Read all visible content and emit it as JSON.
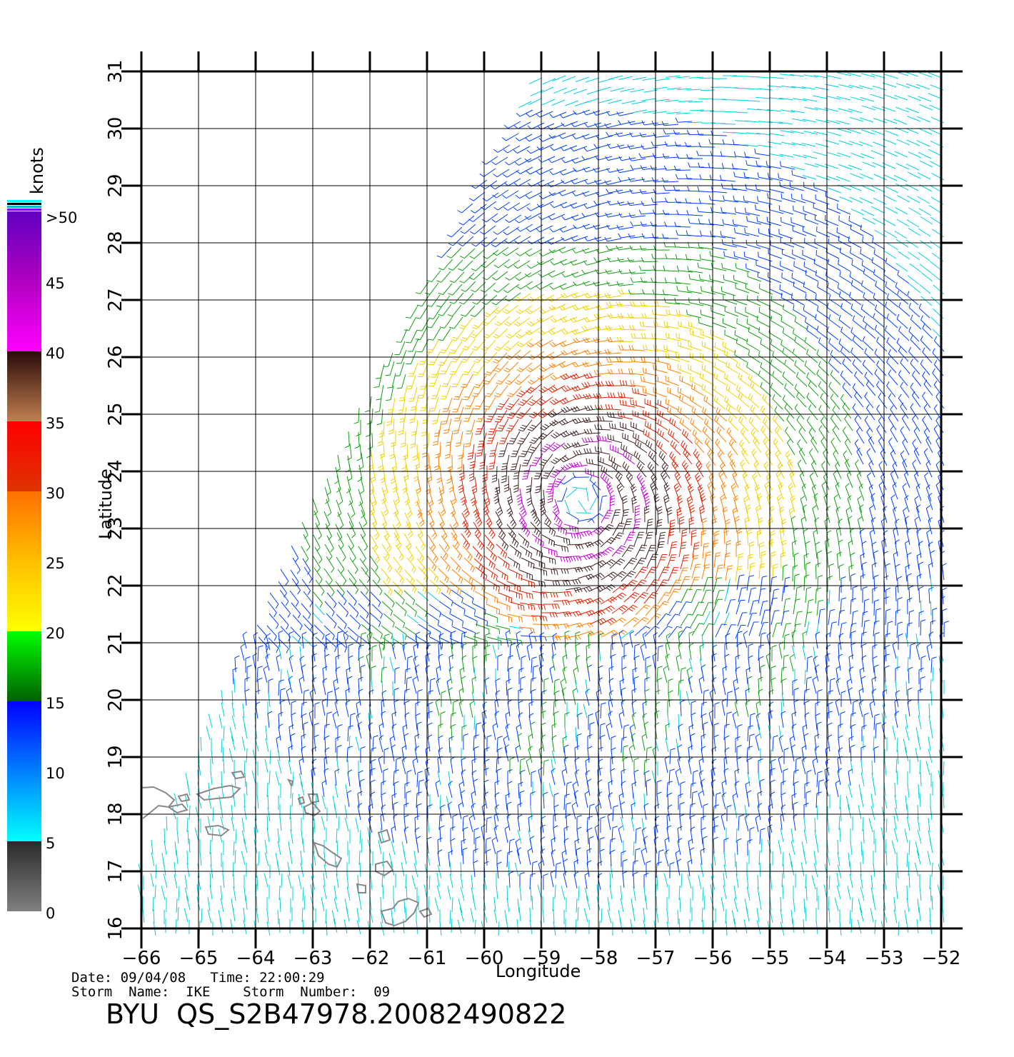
{
  "map": {
    "xlabel": "Longitude",
    "ylabel": "Latitude",
    "lon_range": [
      -66,
      -52
    ],
    "lat_range": [
      16,
      31
    ],
    "lon_ticks": [
      -66,
      -65,
      -64,
      -63,
      -62,
      -61,
      -60,
      -59,
      -58,
      -57,
      -56,
      -55,
      -54,
      -53,
      -52
    ],
    "lat_ticks": [
      16,
      17,
      18,
      19,
      20,
      21,
      22,
      23,
      24,
      25,
      26,
      27,
      28,
      29,
      30,
      31
    ],
    "grid": true,
    "storm_center": {
      "lon": -58.3,
      "lat": 23.5
    },
    "colors": {
      "gridline": "#000000",
      "coastline": "#888888"
    }
  },
  "colorbar": {
    "unit": "knots",
    "top_label": ">50",
    "labels": [
      "0",
      "5",
      "10",
      "15",
      "20",
      "25",
      "30",
      "35",
      "40",
      "45"
    ],
    "colors": {
      "0": "#808080",
      "5": "#2a2a2a",
      "5b": "#00ffff",
      "10": "#0080ff",
      "15": "#0000ff",
      "15b": "#008000",
      "20": "#00ff00",
      "20b": "#ffff00",
      "25": "#ffbf00",
      "30": "#ff6000",
      "30b": "#dd3300",
      "35": "#ff0000",
      "35b": "#c08050",
      "40": "#2a0a0a",
      "40b": "#ff00ff",
      "45": "#b000c0",
      "50": "#6000c0"
    }
  },
  "info": {
    "line1": "Date: 09/04/08   Time: 22:00:29",
    "line2": "Storm  Name:  IKE    Storm  Number:  09"
  },
  "product_id": "BYU  QS_S2B47978.20082490822"
}
